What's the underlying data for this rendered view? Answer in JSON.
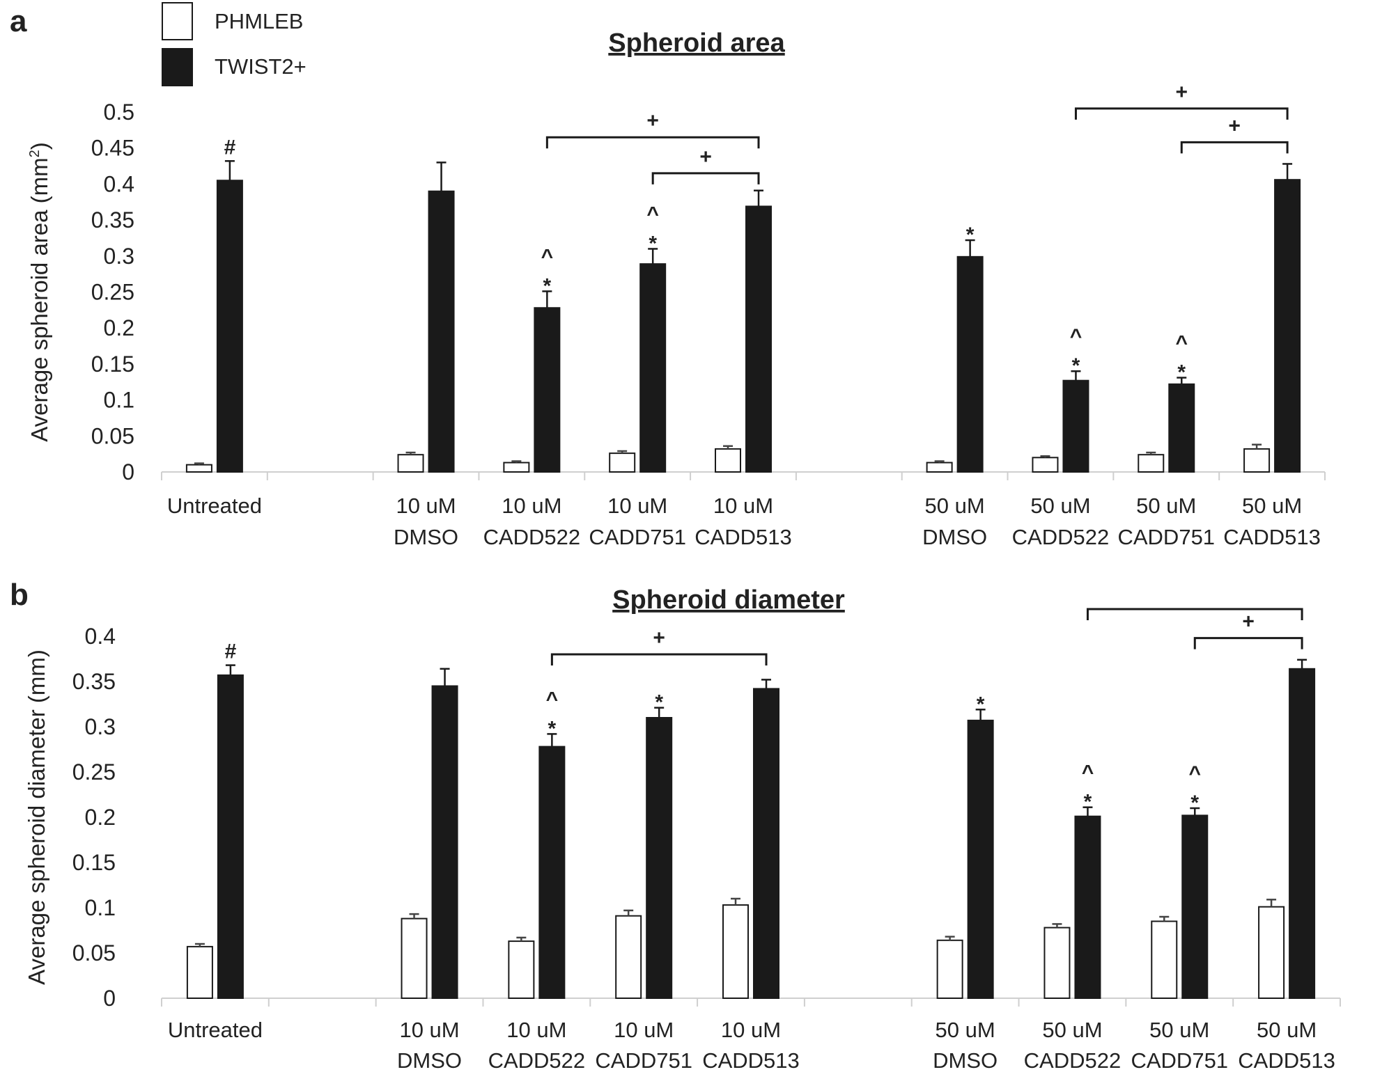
{
  "legend": [
    {
      "name": "PHMLEB",
      "color": "#ffffff"
    },
    {
      "name": "TWIST2+",
      "color": "#1a1a1a"
    }
  ],
  "chart_data": [
    {
      "type": "bar",
      "panel_label": "a",
      "title": "Spheroid area",
      "ylabel_main": "Average spheroid area (mm",
      "ylabel_sup": "2",
      "ylabel_end": ")",
      "ylim": [
        0,
        0.5
      ],
      "yticks": [
        "0",
        "0.05",
        "0.1",
        "0.15",
        "0.2",
        "0.25",
        "0.3",
        "0.35",
        "0.4",
        "0.45",
        "0.5"
      ],
      "categories": [
        {
          "line1": "Untreated",
          "line2": ""
        },
        {
          "line1": "",
          "line2": ""
        },
        {
          "line1": "10 uM",
          "line2": "DMSO"
        },
        {
          "line1": "10 uM",
          "line2": "CADD522"
        },
        {
          "line1": "10 uM",
          "line2": "CADD751"
        },
        {
          "line1": "10 uM",
          "line2": "CADD513"
        },
        {
          "line1": "",
          "line2": ""
        },
        {
          "line1": "50 uM",
          "line2": "DMSO"
        },
        {
          "line1": "50 uM",
          "line2": "CADD522"
        },
        {
          "line1": "50 uM",
          "line2": "CADD751"
        },
        {
          "line1": "50 uM",
          "line2": "CADD513"
        }
      ],
      "series": [
        {
          "name": "PHMLEB",
          "values": [
            0.01,
            null,
            0.024,
            0.013,
            0.026,
            0.032,
            null,
            0.013,
            0.02,
            0.024,
            0.032
          ],
          "errors": [
            0.002,
            null,
            0.003,
            0.002,
            0.003,
            0.004,
            null,
            0.002,
            0.002,
            0.003,
            0.006
          ]
        },
        {
          "name": "TWIST2+",
          "values": [
            0.405,
            null,
            0.39,
            0.228,
            0.289,
            0.369,
            null,
            0.299,
            0.127,
            0.122,
            0.406
          ],
          "errors": [
            0.027,
            null,
            0.04,
            0.023,
            0.021,
            0.022,
            null,
            0.023,
            0.013,
            0.009,
            0.022
          ]
        }
      ],
      "annotations": [
        {
          "category": 0,
          "lines": [
            "#"
          ]
        },
        {
          "category": 3,
          "lines": [
            "^",
            "*"
          ]
        },
        {
          "category": 4,
          "lines": [
            "^",
            "*"
          ]
        },
        {
          "category": 7,
          "lines": [
            "*"
          ]
        },
        {
          "category": 8,
          "lines": [
            "^",
            "*"
          ]
        },
        {
          "category": 9,
          "lines": [
            "^",
            "*"
          ]
        }
      ],
      "brackets": [
        {
          "from": 3,
          "to": 5,
          "level": 0.465,
          "label": "+"
        },
        {
          "from": 4,
          "to": 5,
          "level": 0.415,
          "label": "+"
        },
        {
          "from": 8,
          "to": 10,
          "level": 0.505,
          "label": "+"
        },
        {
          "from": 9,
          "to": 10,
          "level": 0.458,
          "label": "+"
        }
      ]
    },
    {
      "type": "bar",
      "panel_label": "b",
      "title": "Spheroid diameter",
      "ylabel_main": "Average spheroid diameter (mm)",
      "ylabel_sup": "",
      "ylabel_end": "",
      "ylim": [
        0,
        0.4
      ],
      "yticks": [
        "0",
        "0.05",
        "0.1",
        "0.15",
        "0.2",
        "0.25",
        "0.3",
        "0.35",
        "0.4"
      ],
      "categories": [
        {
          "line1": "Untreated",
          "line2": ""
        },
        {
          "line1": "",
          "line2": ""
        },
        {
          "line1": "10 uM",
          "line2": "DMSO"
        },
        {
          "line1": "10 uM",
          "line2": "CADD522"
        },
        {
          "line1": "10 uM",
          "line2": "CADD751"
        },
        {
          "line1": "10 uM",
          "line2": "CADD513"
        },
        {
          "line1": "",
          "line2": ""
        },
        {
          "line1": "50 uM",
          "line2": "DMSO"
        },
        {
          "line1": "50 uM",
          "line2": "CADD522"
        },
        {
          "line1": "50 uM",
          "line2": "CADD751"
        },
        {
          "line1": "50 uM",
          "line2": "CADD513"
        }
      ],
      "series": [
        {
          "name": "PHMLEB",
          "values": [
            0.057,
            null,
            0.088,
            0.063,
            0.091,
            0.103,
            null,
            0.064,
            0.078,
            0.085,
            0.101
          ],
          "errors": [
            0.003,
            null,
            0.005,
            0.004,
            0.006,
            0.007,
            null,
            0.004,
            0.004,
            0.005,
            0.008
          ]
        },
        {
          "name": "TWIST2+",
          "values": [
            0.357,
            null,
            0.345,
            0.278,
            0.31,
            0.342,
            null,
            0.307,
            0.201,
            0.202,
            0.364
          ],
          "errors": [
            0.011,
            null,
            0.019,
            0.014,
            0.011,
            0.01,
            null,
            0.012,
            0.01,
            0.008,
            0.01
          ]
        }
      ],
      "annotations": [
        {
          "category": 0,
          "lines": [
            "#"
          ]
        },
        {
          "category": 3,
          "lines": [
            "^",
            "*"
          ]
        },
        {
          "category": 4,
          "lines": [
            "*"
          ]
        },
        {
          "category": 7,
          "lines": [
            "*"
          ]
        },
        {
          "category": 8,
          "lines": [
            "^",
            "*"
          ]
        },
        {
          "category": 9,
          "lines": [
            "^",
            "*"
          ]
        }
      ],
      "brackets": [
        {
          "from": 3,
          "to": 5,
          "level": 0.38,
          "label": "+"
        },
        {
          "from": 8,
          "to": 10,
          "level": 0.43,
          "label": ""
        },
        {
          "from": 9,
          "to": 10,
          "level": 0.398,
          "label": "+"
        }
      ]
    }
  ]
}
